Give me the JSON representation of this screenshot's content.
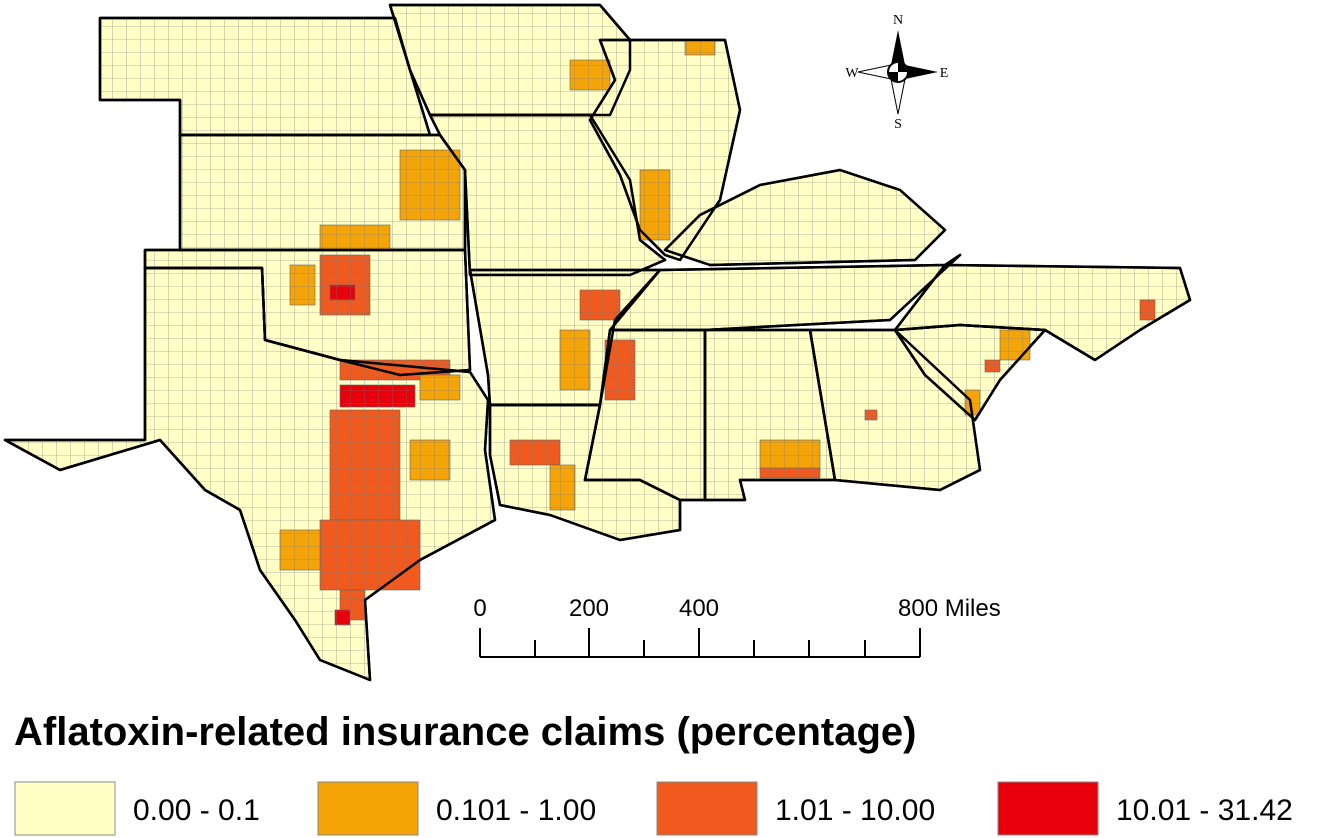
{
  "map": {
    "compass": {
      "north": "N",
      "south": "S",
      "east": "E",
      "west": "W"
    },
    "scale_bar": {
      "labels": [
        "0",
        "200",
        "400",
        "800 Miles"
      ]
    }
  },
  "legend": {
    "title": "Aflatoxin-related insurance claims (percentage)",
    "items": [
      {
        "label": "0.00 - 0.1",
        "color": "#ffffc6"
      },
      {
        "label": "0.101 - 1.00",
        "color": "#f5a408"
      },
      {
        "label": "1.01 - 10.00",
        "color": "#f05a1e"
      },
      {
        "label": "10.01 - 31.42",
        "color": "#e8000b"
      }
    ]
  }
}
